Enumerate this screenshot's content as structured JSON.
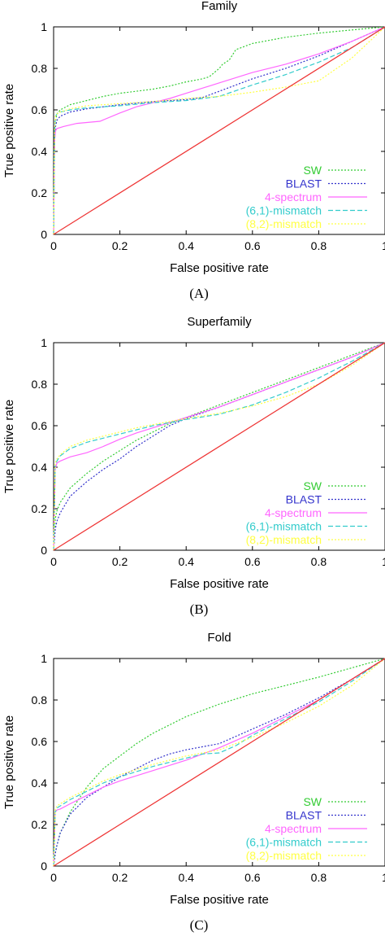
{
  "chart_data": [
    {
      "type": "line",
      "title": "Family",
      "caption": "(A)",
      "xlabel": "False positive rate",
      "ylabel": "True positive rate",
      "xlim": [
        0,
        1
      ],
      "ylim": [
        0,
        1
      ],
      "xticks": [
        "0",
        "0.2",
        "0.4",
        "0.6",
        "0.8",
        "1"
      ],
      "yticks": [
        "0",
        "0.2",
        "0.4",
        "0.6",
        "0.8",
        "1"
      ],
      "legend_position": "bottom-right",
      "series": [
        {
          "name": "SW",
          "color": "#33cc33",
          "dash": "dotted",
          "x": [
            0,
            0.003,
            0.006,
            0.01,
            0.02,
            0.05,
            0.1,
            0.15,
            0.2,
            0.25,
            0.3,
            0.35,
            0.4,
            0.45,
            0.47,
            0.5,
            0.51,
            0.53,
            0.55,
            0.6,
            0.7,
            0.8,
            0.9,
            1.0
          ],
          "y": [
            0,
            0.48,
            0.55,
            0.58,
            0.6,
            0.625,
            0.645,
            0.665,
            0.68,
            0.69,
            0.7,
            0.715,
            0.735,
            0.75,
            0.76,
            0.8,
            0.82,
            0.84,
            0.89,
            0.92,
            0.95,
            0.97,
            0.985,
            1.0
          ]
        },
        {
          "name": "BLAST",
          "color": "#3333cc",
          "dash": "dotted",
          "x": [
            0,
            0.003,
            0.006,
            0.01,
            0.02,
            0.05,
            0.1,
            0.15,
            0.2,
            0.3,
            0.4,
            0.45,
            0.5,
            0.6,
            0.7,
            0.8,
            0.9,
            1.0
          ],
          "y": [
            0,
            0.45,
            0.52,
            0.55,
            0.57,
            0.59,
            0.605,
            0.615,
            0.625,
            0.64,
            0.65,
            0.66,
            0.69,
            0.75,
            0.8,
            0.86,
            0.93,
            1.0
          ]
        },
        {
          "name": "4-spectrum",
          "color": "#ff66ff",
          "dash": "solid",
          "x": [
            0,
            0.003,
            0.006,
            0.01,
            0.03,
            0.07,
            0.14,
            0.2,
            0.25,
            0.3,
            0.35,
            0.4,
            0.5,
            0.6,
            0.7,
            0.8,
            0.9,
            1.0
          ],
          "y": [
            0,
            0.45,
            0.5,
            0.51,
            0.52,
            0.535,
            0.545,
            0.585,
            0.615,
            0.635,
            0.655,
            0.68,
            0.73,
            0.78,
            0.82,
            0.87,
            0.93,
            1.0
          ]
        },
        {
          "name": "(6,1)-mismatch",
          "color": "#33cccc",
          "dash": "dashed",
          "x": [
            0,
            0.003,
            0.006,
            0.01,
            0.02,
            0.05,
            0.1,
            0.15,
            0.2,
            0.3,
            0.4,
            0.5,
            0.6,
            0.7,
            0.8,
            0.9,
            1.0
          ],
          "y": [
            0,
            0.5,
            0.57,
            0.58,
            0.59,
            0.6,
            0.61,
            0.615,
            0.62,
            0.635,
            0.645,
            0.665,
            0.72,
            0.77,
            0.83,
            0.9,
            1.0
          ]
        },
        {
          "name": "(8,2)-mismatch",
          "color": "#ffff44",
          "dash": "dotted",
          "x": [
            0,
            0.003,
            0.006,
            0.01,
            0.02,
            0.05,
            0.1,
            0.2,
            0.3,
            0.4,
            0.5,
            0.6,
            0.7,
            0.8,
            0.9,
            1.0
          ],
          "y": [
            0,
            0.5,
            0.57,
            0.58,
            0.59,
            0.605,
            0.62,
            0.63,
            0.64,
            0.655,
            0.665,
            0.685,
            0.71,
            0.74,
            0.85,
            1.0
          ]
        },
        {
          "name": "",
          "color": "#ee3333",
          "dash": "solid",
          "x": [
            0,
            1
          ],
          "y": [
            0,
            1
          ]
        }
      ]
    },
    {
      "type": "line",
      "title": "Superfamily",
      "caption": "(B)",
      "xlabel": "False positive rate",
      "ylabel": "True positive rate",
      "xlim": [
        0,
        1
      ],
      "ylim": [
        0,
        1
      ],
      "xticks": [
        "0",
        "0.2",
        "0.4",
        "0.6",
        "0.8",
        "1"
      ],
      "yticks": [
        "0",
        "0.2",
        "0.4",
        "0.6",
        "0.8",
        "1"
      ],
      "legend_position": "bottom-right",
      "series": [
        {
          "name": "SW",
          "color": "#33cc33",
          "dash": "dotted",
          "x": [
            0,
            0.005,
            0.01,
            0.02,
            0.05,
            0.1,
            0.15,
            0.2,
            0.25,
            0.3,
            0.35,
            0.4,
            0.5,
            0.6,
            0.7,
            0.8,
            0.9,
            1.0
          ],
          "y": [
            0,
            0.15,
            0.19,
            0.23,
            0.3,
            0.37,
            0.43,
            0.48,
            0.53,
            0.57,
            0.61,
            0.64,
            0.7,
            0.76,
            0.82,
            0.88,
            0.94,
            1.0
          ]
        },
        {
          "name": "BLAST",
          "color": "#3333cc",
          "dash": "dotted",
          "x": [
            0,
            0.005,
            0.01,
            0.02,
            0.05,
            0.1,
            0.15,
            0.2,
            0.25,
            0.3,
            0.35,
            0.4,
            0.5,
            0.6,
            0.7,
            0.8,
            0.9,
            1.0
          ],
          "y": [
            0,
            0.1,
            0.14,
            0.18,
            0.26,
            0.33,
            0.39,
            0.44,
            0.5,
            0.55,
            0.6,
            0.635,
            0.69,
            0.75,
            0.81,
            0.87,
            0.93,
            1.0
          ]
        },
        {
          "name": "4-spectrum",
          "color": "#ff66ff",
          "dash": "solid",
          "x": [
            0,
            0.005,
            0.01,
            0.02,
            0.05,
            0.1,
            0.15,
            0.2,
            0.25,
            0.3,
            0.35,
            0.4,
            0.5,
            0.6,
            0.7,
            0.8,
            0.9,
            1.0
          ],
          "y": [
            0,
            0.39,
            0.42,
            0.43,
            0.45,
            0.47,
            0.5,
            0.535,
            0.565,
            0.59,
            0.615,
            0.64,
            0.69,
            0.75,
            0.81,
            0.87,
            0.93,
            1.0
          ]
        },
        {
          "name": "(6,1)-mismatch",
          "color": "#33cccc",
          "dash": "dashed",
          "x": [
            0,
            0.005,
            0.01,
            0.02,
            0.05,
            0.1,
            0.15,
            0.2,
            0.25,
            0.3,
            0.35,
            0.4,
            0.5,
            0.6,
            0.7,
            0.8,
            0.9,
            1.0
          ],
          "y": [
            0,
            0.41,
            0.43,
            0.455,
            0.49,
            0.52,
            0.54,
            0.56,
            0.58,
            0.6,
            0.615,
            0.63,
            0.655,
            0.7,
            0.76,
            0.83,
            0.91,
            1.0
          ]
        },
        {
          "name": "(8,2)-mismatch",
          "color": "#ffff44",
          "dash": "dotted",
          "x": [
            0,
            0.005,
            0.01,
            0.02,
            0.05,
            0.1,
            0.15,
            0.2,
            0.25,
            0.3,
            0.35,
            0.4,
            0.5,
            0.6,
            0.7,
            0.8,
            0.9,
            1.0
          ],
          "y": [
            0,
            0.42,
            0.44,
            0.46,
            0.5,
            0.53,
            0.55,
            0.57,
            0.59,
            0.605,
            0.62,
            0.635,
            0.66,
            0.695,
            0.74,
            0.8,
            0.89,
            1.0
          ]
        },
        {
          "name": "",
          "color": "#ee3333",
          "dash": "solid",
          "x": [
            0,
            1
          ],
          "y": [
            0,
            1
          ]
        }
      ]
    },
    {
      "type": "line",
      "title": "Fold",
      "caption": "(C)",
      "xlabel": "False positive rate",
      "ylabel": "True positive rate",
      "xlim": [
        0,
        1
      ],
      "ylim": [
        0,
        1
      ],
      "xticks": [
        "0",
        "0.2",
        "0.4",
        "0.6",
        "0.8",
        "1"
      ],
      "yticks": [
        "0",
        "0.2",
        "0.4",
        "0.6",
        "0.8",
        "1"
      ],
      "legend_position": "bottom-right",
      "series": [
        {
          "name": "SW",
          "color": "#33cc33",
          "dash": "dotted",
          "x": [
            0,
            0.005,
            0.01,
            0.02,
            0.05,
            0.1,
            0.15,
            0.2,
            0.25,
            0.3,
            0.35,
            0.4,
            0.5,
            0.6,
            0.7,
            0.8,
            0.9,
            1.0
          ],
          "y": [
            0,
            0.06,
            0.1,
            0.16,
            0.26,
            0.38,
            0.47,
            0.53,
            0.59,
            0.64,
            0.68,
            0.72,
            0.78,
            0.83,
            0.87,
            0.91,
            0.955,
            1.0
          ]
        },
        {
          "name": "BLAST",
          "color": "#3333cc",
          "dash": "dotted",
          "x": [
            0,
            0.005,
            0.01,
            0.02,
            0.05,
            0.1,
            0.15,
            0.2,
            0.25,
            0.3,
            0.35,
            0.4,
            0.45,
            0.5,
            0.6,
            0.7,
            0.8,
            0.9,
            1.0
          ],
          "y": [
            0,
            0.06,
            0.1,
            0.16,
            0.25,
            0.33,
            0.38,
            0.43,
            0.47,
            0.51,
            0.54,
            0.56,
            0.575,
            0.59,
            0.66,
            0.73,
            0.81,
            0.9,
            1.0
          ]
        },
        {
          "name": "4-spectrum",
          "color": "#ff66ff",
          "dash": "solid",
          "x": [
            0,
            0.005,
            0.01,
            0.02,
            0.05,
            0.1,
            0.15,
            0.2,
            0.3,
            0.4,
            0.5,
            0.6,
            0.7,
            0.8,
            0.9,
            1.0
          ],
          "y": [
            0,
            0.26,
            0.27,
            0.275,
            0.3,
            0.34,
            0.38,
            0.41,
            0.46,
            0.51,
            0.57,
            0.64,
            0.72,
            0.8,
            0.9,
            1.0
          ]
        },
        {
          "name": "(6,1)-mismatch",
          "color": "#33cccc",
          "dash": "dashed",
          "x": [
            0,
            0.005,
            0.01,
            0.02,
            0.05,
            0.1,
            0.15,
            0.2,
            0.3,
            0.4,
            0.45,
            0.5,
            0.55,
            0.6,
            0.7,
            0.8,
            0.9,
            1.0
          ],
          "y": [
            0,
            0.26,
            0.28,
            0.29,
            0.32,
            0.36,
            0.4,
            0.43,
            0.48,
            0.52,
            0.54,
            0.545,
            0.58,
            0.63,
            0.71,
            0.79,
            0.89,
            1.0
          ]
        },
        {
          "name": "(8,2)-mismatch",
          "color": "#ffff44",
          "dash": "dotted",
          "x": [
            0,
            0.005,
            0.01,
            0.02,
            0.05,
            0.1,
            0.15,
            0.2,
            0.3,
            0.4,
            0.5,
            0.6,
            0.7,
            0.8,
            0.9,
            1.0
          ],
          "y": [
            0,
            0.27,
            0.29,
            0.3,
            0.33,
            0.37,
            0.41,
            0.44,
            0.49,
            0.53,
            0.56,
            0.62,
            0.69,
            0.77,
            0.87,
            1.0
          ]
        },
        {
          "name": "",
          "color": "#ee3333",
          "dash": "solid",
          "x": [
            0,
            1
          ],
          "y": [
            0,
            1
          ]
        }
      ]
    }
  ]
}
